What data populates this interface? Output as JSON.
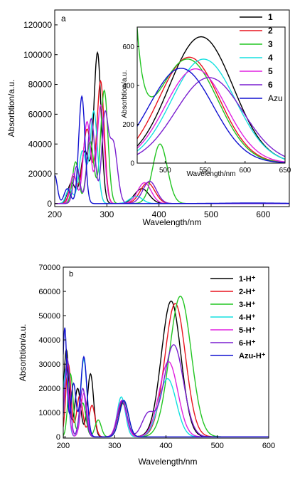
{
  "chart_data": [
    {
      "panel_label": "a",
      "type": "line",
      "xlabel": "Wavelength/nm",
      "ylabel": "Absorbtion/a.u.",
      "xlim": [
        200,
        650
      ],
      "ylim": [
        -2000,
        130000
      ],
      "xticks": [
        200,
        300,
        400,
        500,
        600
      ],
      "yticks": [
        0,
        20000,
        40000,
        60000,
        80000,
        100000,
        120000
      ],
      "legend_position": "top-right",
      "series": [
        {
          "name": "1",
          "color": "#000000",
          "bands": [
            [
              282,
              101000,
              7
            ],
            [
              258,
              35000,
              8
            ],
            [
              232,
              14000,
              7
            ],
            [
              367,
              10000,
              14
            ]
          ]
        },
        {
          "name": "2",
          "color": "#e8141e",
          "bands": [
            [
              288,
              82000,
              7
            ],
            [
              262,
              50000,
              8
            ],
            [
              236,
              18000,
              7
            ],
            [
              378,
              14000,
              14
            ]
          ]
        },
        {
          "name": "3",
          "color": "#22c522",
          "bands": [
            [
              295,
              76000,
              7
            ],
            [
              268,
              42000,
              7
            ],
            [
              240,
              28000,
              6
            ],
            [
              402,
              40000,
              14
            ]
          ]
        },
        {
          "name": "4",
          "color": "#16e0e0",
          "bands": [
            [
              275,
              62000,
              7
            ],
            [
              253,
              35000,
              7
            ],
            [
              228,
              10000,
              6
            ],
            [
              356,
              5000,
              12
            ]
          ]
        },
        {
          "name": "5",
          "color": "#e020e0",
          "bands": [
            [
              288,
              66000,
              7
            ],
            [
              262,
              55000,
              7
            ],
            [
              236,
              20000,
              6
            ],
            [
              372,
              14000,
              13
            ]
          ]
        },
        {
          "name": "6",
          "color": "#7a1fd0",
          "bands": [
            [
              312,
              41000,
              8
            ],
            [
              296,
              56000,
              6
            ],
            [
              270,
              57000,
              7
            ],
            [
              242,
              25000,
              6
            ],
            [
              382,
              15000,
              13
            ]
          ]
        },
        {
          "name": "Azu",
          "color": "#1010d0",
          "bands": [
            [
              252,
              72000,
              6
            ],
            [
              224,
              10000,
              6
            ],
            [
              200,
              19000,
              5
            ],
            [
              580,
              400,
              60
            ]
          ]
        }
      ]
    },
    {
      "panel_label": "",
      "type": "line",
      "inset": true,
      "xlabel": "Wavelength/nm",
      "ylabel": "Absorbtion/a.u.",
      "xlim": [
        465,
        650
      ],
      "ylim": [
        0,
        700
      ],
      "xticks": [
        500,
        550,
        600,
        650
      ],
      "yticks": [
        0,
        200,
        400,
        600
      ],
      "series": [
        {
          "name": "1",
          "color": "#000000",
          "peak_x": 545,
          "peak_y": 650,
          "width": 40
        },
        {
          "name": "2",
          "color": "#e8141e",
          "peak_x": 530,
          "peak_y": 545,
          "width": 38
        },
        {
          "name": "3",
          "color": "#22c522",
          "peak_x": 528,
          "peak_y": 535,
          "width": 38
        },
        {
          "name": "4",
          "color": "#16e0e0",
          "peak_x": 548,
          "peak_y": 535,
          "width": 40
        },
        {
          "name": "5",
          "color": "#e020e0",
          "peak_x": 538,
          "peak_y": 485,
          "width": 38
        },
        {
          "name": "6",
          "color": "#7a1fd0",
          "peak_x": 555,
          "peak_y": 440,
          "width": 42
        },
        {
          "name": "Azu",
          "color": "#1010d0",
          "peak_x": 520,
          "peak_y": 488,
          "width": 40
        }
      ]
    },
    {
      "panel_label": "b",
      "type": "line",
      "xlabel": "Wavelength/nm",
      "ylabel": "Absorbtion/a.u.",
      "xlim": [
        200,
        600
      ],
      "ylim": [
        -500,
        70000
      ],
      "xticks": [
        200,
        300,
        400,
        500,
        600
      ],
      "yticks": [
        0,
        10000,
        20000,
        30000,
        40000,
        50000,
        60000,
        70000
      ],
      "legend_position": "top-right",
      "series": [
        {
          "name": "1-H⁺",
          "color": "#000000",
          "bands": [
            [
              410,
              56000,
              19
            ],
            [
              315,
              14000,
              9
            ],
            [
              253,
              26000,
              6
            ],
            [
              228,
              20000,
              6
            ],
            [
              206,
              36000,
              5
            ]
          ]
        },
        {
          "name": "2-H⁺",
          "color": "#e8141e",
          "bands": [
            [
              418,
              55000,
              20
            ],
            [
              315,
              14500,
              9
            ],
            [
              256,
              13000,
              6
            ],
            [
              232,
              17000,
              6
            ],
            [
              210,
              30000,
              5
            ]
          ]
        },
        {
          "name": "3-H⁺",
          "color": "#22c522",
          "bands": [
            [
              428,
              58000,
              21
            ],
            [
              318,
              14500,
              9
            ],
            [
              268,
              7000,
              6
            ],
            [
              238,
              14000,
              6
            ],
            [
              214,
              26000,
              5
            ]
          ]
        },
        {
          "name": "4-H⁺",
          "color": "#16e0e0",
          "bands": [
            [
              403,
              24000,
              17
            ],
            [
              313,
              16500,
              8
            ],
            [
              240,
              32000,
              6
            ],
            [
              205,
              28000,
              5
            ]
          ]
        },
        {
          "name": "5-H⁺",
          "color": "#e020e0",
          "bands": [
            [
              405,
              31000,
              18
            ],
            [
              314,
              15000,
              9
            ],
            [
              240,
              18000,
              6
            ],
            [
              206,
              26000,
              5
            ]
          ]
        },
        {
          "name": "6-H⁺",
          "color": "#7a1fd0",
          "bands": [
            [
              415,
              38000,
              19
            ],
            [
              365,
              9000,
              12
            ],
            [
              315,
              15000,
              9
            ],
            [
              238,
              20000,
              6
            ],
            [
              208,
              32000,
              5
            ]
          ]
        },
        {
          "name": "Azu-H⁺",
          "color": "#1010d0",
          "bands": [
            [
              318,
              15000,
              9
            ],
            [
              240,
              33000,
              6
            ],
            [
              220,
              22000,
              5
            ],
            [
              203,
              45000,
              4
            ]
          ]
        }
      ]
    }
  ]
}
